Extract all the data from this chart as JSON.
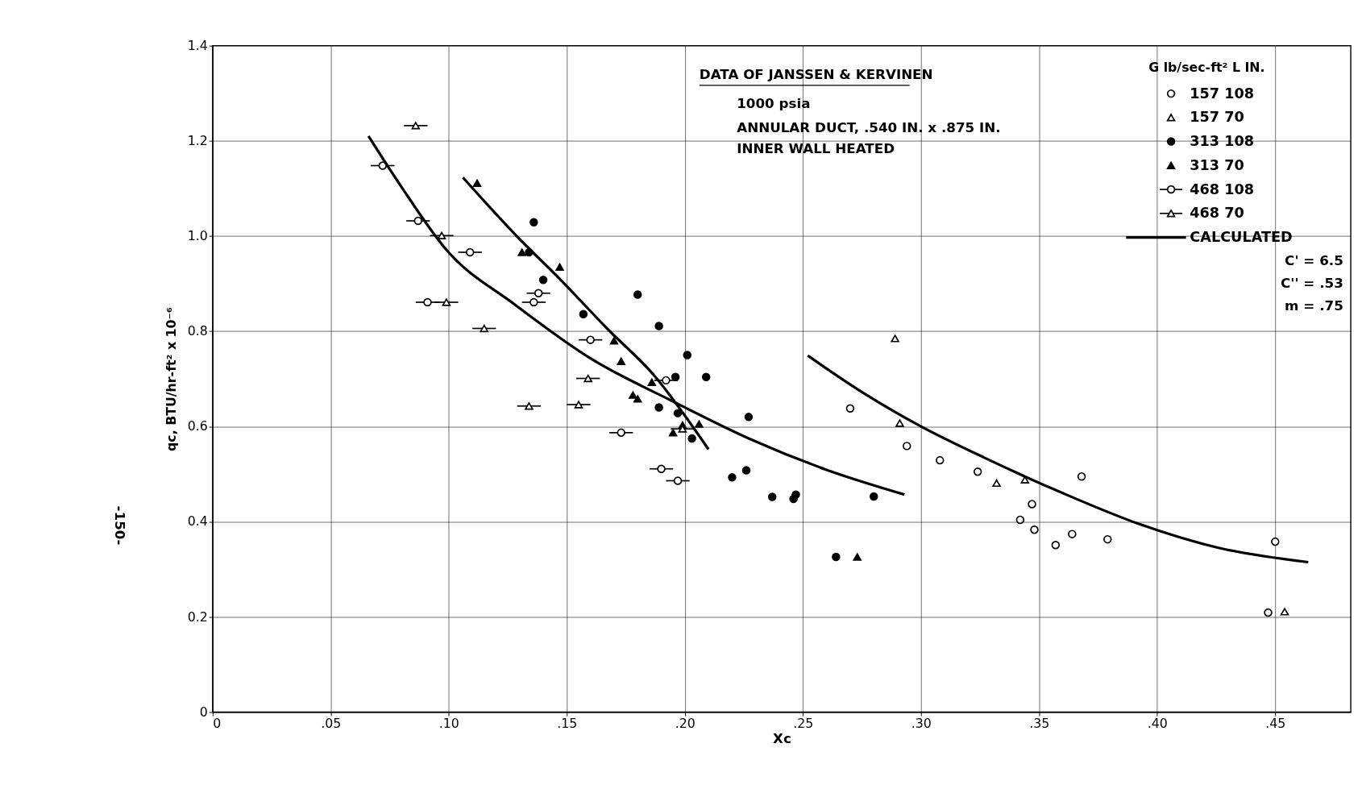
{
  "chart_data": {
    "type": "scatter",
    "xlabel": "Xc",
    "ylabel": "qc, BTU/hr-ft² x 10⁻⁶",
    "legend_title": "G lb/sec-ft²    L IN.",
    "legend": "top right",
    "grid": true,
    "line_style": "solid",
    "xlim": [
      0,
      0.482
    ],
    "ylim": [
      0,
      1.4
    ],
    "xticks": [
      0,
      {
        "value": 0.05,
        "label": ".05"
      },
      {
        "value": 0.1,
        "label": ".10"
      },
      {
        "value": 0.15,
        "label": ".15"
      },
      {
        "value": 0.2,
        "label": ".20"
      },
      {
        "value": 0.25,
        "label": ".25"
      },
      {
        "value": 0.3,
        "label": ".30"
      },
      {
        "value": 0.35,
        "label": ".35"
      },
      {
        "value": 0.4,
        "label": ".40"
      },
      {
        "value": 0.45,
        "label": ".45"
      }
    ],
    "yticks": [
      0,
      0.2,
      0.4,
      0.6,
      0.8,
      {
        "value": 1.0,
        "label": "1.0"
      },
      1.2,
      1.4
    ],
    "annotations": [
      "DATA OF JANSSEN & KERVINEN",
      "1000 psia",
      "ANNULAR DUCT, .540 IN. x .875 IN.",
      "INNER WALL HEATED",
      "C' = 6.5",
      "C'' = .53",
      "m = .75",
      "-150-"
    ],
    "series": [
      {
        "name": "157  108",
        "color": "#ffffff",
        "marker": "circle",
        "x": [
          0.27,
          0.294,
          0.308,
          0.324,
          0.342,
          0.347,
          0.348,
          0.357,
          0.364,
          0.368,
          0.379,
          0.45,
          0.447
        ],
        "values": [
          0.638,
          0.559,
          0.529,
          0.505,
          0.404,
          0.437,
          0.383,
          0.351,
          0.374,
          0.495,
          0.363,
          0.358,
          0.209
        ]
      },
      {
        "name": "157  70",
        "color": "#ffffff",
        "marker": "triangle",
        "x": [
          0.289,
          0.291,
          0.332,
          0.344,
          0.454
        ],
        "values": [
          0.785,
          0.607,
          0.481,
          0.488,
          0.211
        ]
      },
      {
        "name": "313  108",
        "color": "#000000",
        "marker": "circle",
        "x": [
          0.136,
          0.134,
          0.14,
          0.157,
          0.18,
          0.189,
          0.201,
          0.209,
          0.196,
          0.197,
          0.189,
          0.198,
          0.203,
          0.226,
          0.22,
          0.227,
          0.237,
          0.246,
          0.247,
          0.28,
          0.264
        ],
        "values": [
          1.029,
          0.966,
          0.908,
          0.836,
          0.877,
          0.811,
          0.75,
          0.704,
          0.704,
          0.628,
          0.64,
          null,
          0.575,
          0.508,
          0.493,
          0.62,
          0.452,
          0.448,
          0.457,
          0.453,
          0.326
        ]
      },
      {
        "name": "313  70",
        "color": "#000000",
        "marker": "triangle",
        "x": [
          0.112,
          0.131,
          0.147,
          0.17,
          0.173,
          0.178,
          0.18,
          0.186,
          0.195,
          0.199,
          0.206,
          0.273
        ],
        "values": [
          1.111,
          0.966,
          0.935,
          0.78,
          0.737,
          0.666,
          0.658,
          0.693,
          0.587,
          0.603,
          0.605,
          0.326
        ]
      },
      {
        "name": "468  108",
        "color": "#ffffff",
        "marker": "circle",
        "xerrors": [
          0.005,
          0.005,
          0.005,
          0.005,
          0.005,
          0.005,
          0.005,
          0.005,
          0.005,
          0.005,
          0.005
        ],
        "x": [
          0.072,
          0.087,
          0.109,
          0.091,
          0.136,
          0.138,
          0.16,
          0.192,
          0.173,
          0.19,
          0.197
        ],
        "values": [
          1.148,
          1.032,
          0.966,
          0.861,
          0.861,
          0.88,
          0.782,
          0.697,
          0.587,
          0.511,
          0.486
        ]
      },
      {
        "name": "468  70",
        "color": "#ffffff",
        "marker": "triangle",
        "xerrors": [
          0.005,
          0.005,
          0.005,
          0.005,
          0.005,
          0.005,
          0.005,
          0.005
        ],
        "x": [
          0.086,
          0.097,
          0.099,
          0.115,
          0.134,
          0.155,
          0.159,
          0.199
        ],
        "values": [
          1.232,
          1.001,
          0.861,
          0.806,
          0.643,
          0.646,
          0.701,
          0.595
        ]
      },
      {
        "name": "CALCULATED",
        "type": "line",
        "color": "#000000",
        "x": [
          0.066,
          0.08,
          0.099,
          0.128,
          0.161,
          0.194,
          0.227,
          0.26,
          0.293
        ],
        "values": [
          1.21,
          1.103,
          0.971,
          0.856,
          0.74,
          0.655,
          0.575,
          0.509,
          0.457
        ]
      },
      {
        "type": "line",
        "color": "#000000",
        "x": [
          0.106,
          0.128,
          0.148,
          0.167,
          0.187,
          0.21
        ],
        "values": [
          1.123,
          1.004,
          0.905,
          0.806,
          0.707,
          0.552
        ]
      },
      {
        "type": "line",
        "color": "#000000",
        "x": [
          0.252,
          0.277,
          0.3,
          0.327,
          0.36,
          0.393,
          0.426,
          0.464
        ],
        "values": [
          0.749,
          0.666,
          0.6,
          0.534,
          0.46,
          0.394,
          0.345,
          0.315
        ]
      }
    ]
  }
}
